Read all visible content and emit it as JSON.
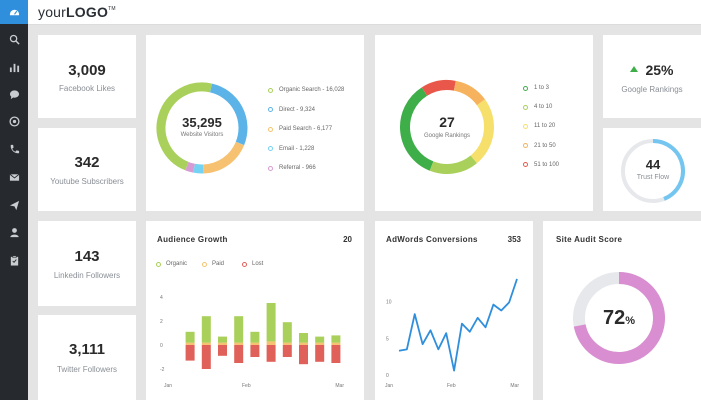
{
  "brand": {
    "logo_light": "your",
    "logo_bold": "LOGO",
    "logo_tm": "TM"
  },
  "sidebar": {
    "items": [
      {
        "icon": "dashboard-icon",
        "active": true
      },
      {
        "icon": "search-icon"
      },
      {
        "icon": "bar-chart-icon"
      },
      {
        "icon": "chat-icon"
      },
      {
        "icon": "at-sign-icon"
      },
      {
        "icon": "phone-icon"
      },
      {
        "icon": "mail-icon"
      },
      {
        "icon": "send-icon"
      },
      {
        "icon": "user-icon"
      },
      {
        "icon": "clipboard-icon"
      }
    ]
  },
  "stats": {
    "facebook": {
      "value": "3,009",
      "label": "Facebook Likes"
    },
    "youtube": {
      "value": "342",
      "label": "Youtube Subscribers"
    },
    "linkedin": {
      "value": "143",
      "label": "Linkedin Followers"
    },
    "twitter": {
      "value": "3,111",
      "label": "Twitter Followers"
    }
  },
  "visitors": {
    "value": "35,295",
    "label": "Website Visitors",
    "legend": [
      {
        "text": "Organic Search - 16,028",
        "value": 16028,
        "color": "#a9d05a"
      },
      {
        "text": "Direct - 9,324",
        "value": 9324,
        "color": "#5cb3e8"
      },
      {
        "text": "Paid Search - 6,177",
        "value": 6177,
        "color": "#f6c272"
      },
      {
        "text": "Email - 1,228",
        "value": 1228,
        "color": "#74d2f2"
      },
      {
        "text": "Referral - 966",
        "value": 966,
        "color": "#d79ad2"
      }
    ]
  },
  "rankings": {
    "value": "27",
    "label": "Google Rankings",
    "legend": [
      {
        "text": "1 to 3",
        "color": "#3eae49"
      },
      {
        "text": "4 to 10",
        "color": "#a9d05a"
      },
      {
        "text": "11 to 20",
        "color": "#f6df6b"
      },
      {
        "text": "21 to 50",
        "color": "#f6b25c"
      },
      {
        "text": "51 to 100",
        "color": "#e9574a"
      }
    ],
    "segments": [
      {
        "value": 35,
        "color": "#3eae49"
      },
      {
        "value": 12,
        "color": "#e9574a"
      },
      {
        "value": 12,
        "color": "#f6b25c"
      },
      {
        "value": 24,
        "color": "#f6df6b"
      },
      {
        "value": 17,
        "color": "#a9d05a"
      }
    ]
  },
  "google_rank": {
    "value": "25%",
    "label": "Google Rankings",
    "trend_color": "#3eae49"
  },
  "trust_flow": {
    "value": "44",
    "label": "Trust Flow",
    "percent": 44,
    "color": "#74c6f0"
  },
  "audience": {
    "title": "Audience Growth",
    "count": "20",
    "legend": [
      {
        "text": "Organic",
        "color": "#a9d05a"
      },
      {
        "text": "Paid",
        "color": "#f6c272"
      },
      {
        "text": "Lost",
        "color": "#e0605a"
      }
    ],
    "y_ticks": [
      "4",
      "2",
      "0",
      "-2"
    ],
    "x_ticks": [
      "Jan",
      "Feb",
      "Mar"
    ]
  },
  "adwords": {
    "title": "AdWords Conversions",
    "count": "353",
    "y_ticks": [
      "10",
      "5",
      "0"
    ],
    "x_ticks": [
      "Jan",
      "Feb",
      "Mar"
    ],
    "color": "#2f8fdc"
  },
  "audit": {
    "title": "Site Audit Score",
    "value": "72",
    "unit": "%",
    "percent": 72,
    "color": "#d88ed0"
  },
  "chart_data": [
    {
      "type": "bar",
      "title": "Audience Growth",
      "categories": [
        "1",
        "2",
        "3",
        "4",
        "5",
        "6",
        "7",
        "8",
        "9",
        "10"
      ],
      "ylim": [
        -2.5,
        5
      ],
      "series": [
        {
          "name": "Organic",
          "values": [
            0.9,
            2.2,
            0.5,
            2.2,
            0.9,
            3.2,
            1.7,
            0.8,
            0.5,
            0.6
          ]
        },
        {
          "name": "Paid",
          "values": [
            0.2,
            0.2,
            0.2,
            0.2,
            0.2,
            0.3,
            0.2,
            0.2,
            0.2,
            0.2
          ]
        },
        {
          "name": "Lost",
          "values": [
            -1.3,
            -2.0,
            -0.9,
            -1.5,
            -1.0,
            -1.4,
            -1.0,
            -1.6,
            -1.4,
            -1.5
          ]
        }
      ],
      "x_ticks": [
        "Jan",
        "Feb",
        "Mar"
      ]
    },
    {
      "type": "line",
      "title": "AdWords Conversions",
      "x": [
        1,
        2,
        3,
        4,
        5,
        6,
        7,
        8,
        9,
        10,
        11,
        12,
        13,
        14,
        15,
        16
      ],
      "values": [
        3.3,
        3.5,
        8.3,
        4.2,
        6.1,
        3.5,
        5.7,
        0.6,
        7.0,
        5.9,
        7.8,
        6.5,
        9.6,
        8.8,
        9.9,
        13.1
      ],
      "ylim": [
        0,
        15
      ],
      "x_ticks": [
        "Jan",
        "Feb",
        "Mar"
      ]
    }
  ]
}
